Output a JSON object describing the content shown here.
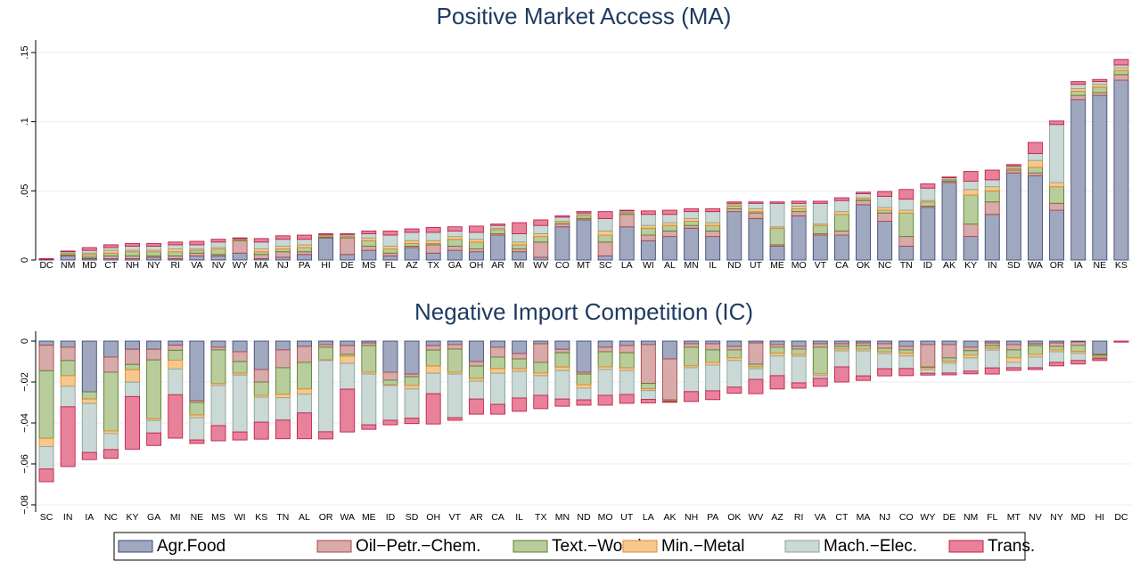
{
  "chart_data": [
    {
      "type": "stacked_bar",
      "title": "Positive Market Access (MA)",
      "categories": [
        "DC",
        "NM",
        "MD",
        "CT",
        "NH",
        "NY",
        "RI",
        "VA",
        "NV",
        "WY",
        "MA",
        "NJ",
        "PA",
        "HI",
        "DE",
        "MS",
        "FL",
        "AZ",
        "TX",
        "GA",
        "OH",
        "AR",
        "MI",
        "WV",
        "CO",
        "MT",
        "SC",
        "LA",
        "WI",
        "AL",
        "MN",
        "IL",
        "ND",
        "UT",
        "ME",
        "MO",
        "VT",
        "CA",
        "OK",
        "NC",
        "TN",
        "ID",
        "AK",
        "KY",
        "IN",
        "SD",
        "WA",
        "OR",
        "IA",
        "NE",
        "KS"
      ],
      "ylim": [
        0,
        0.159
      ],
      "yticks": [
        0,
        {
          "value": 0.05,
          "label": ".05"
        },
        {
          "value": 0.1,
          "label": ".1"
        },
        {
          "value": 0.15,
          "label": ".15"
        }
      ],
      "grid": true,
      "legend": "bottom",
      "series": [
        {
          "name": "Agr.Food",
          "color": "#a0a8c0",
          "edgecolor": "#3e4a78",
          "values": [
            0.0005,
            0.003,
            0.001,
            0.001,
            0.001,
            0.002,
            0.001,
            0.003,
            0.003,
            0.005,
            0.001,
            0.002,
            0.004,
            0.016,
            0.004,
            0.007,
            0.003,
            0.009,
            0.005,
            0.007,
            0.006,
            0.018,
            0.006,
            0.002,
            0.024,
            0.029,
            0.003,
            0.024,
            0.014,
            0.017,
            0.023,
            0.017,
            0.035,
            0.03,
            0.01,
            0.032,
            0.018,
            0.018,
            0.04,
            0.028,
            0.01,
            0.038,
            0.056,
            0.017,
            0.033,
            0.063,
            0.061,
            0.036,
            0.116,
            0.119,
            0.13
          ]
        },
        {
          "name": "Oil−Petr.−Chem.",
          "color": "#d8aaaa",
          "edgecolor": "#a84848",
          "values": [
            0,
            0.0005,
            0.001,
            0.002,
            0.002,
            0.001,
            0.002,
            0.002,
            0.001,
            0.009,
            0.003,
            0.004,
            0.002,
            0.0005,
            0.012,
            0.003,
            0.002,
            0.001,
            0.006,
            0.003,
            0.002,
            0.001,
            0.002,
            0.011,
            0.002,
            0.001,
            0.01,
            0.009,
            0.004,
            0.004,
            0.002,
            0.004,
            0.002,
            0.004,
            0.001,
            0.003,
            0.001,
            0.003,
            0.003,
            0.006,
            0.007,
            0.001,
            0.001,
            0.009,
            0.009,
            0.002,
            0.002,
            0.005,
            0.003,
            0.002,
            0.004
          ]
        },
        {
          "name": "Text.−Wood",
          "color": "#b8cc9c",
          "edgecolor": "#5a8030",
          "values": [
            0,
            0.001,
            0.002,
            0.002,
            0.003,
            0.003,
            0.003,
            0.002,
            0.004,
            0.0005,
            0.002,
            0.002,
            0.003,
            0.001,
            0.001,
            0.004,
            0.003,
            0.002,
            0.001,
            0.005,
            0.005,
            0.003,
            0.003,
            0.004,
            0.001,
            0.002,
            0.005,
            0.001,
            0.005,
            0.004,
            0.003,
            0.004,
            0.002,
            0.001,
            0.012,
            0.002,
            0.006,
            0.012,
            0.001,
            0.002,
            0.017,
            0.003,
            0.001,
            0.021,
            0.008,
            0.001,
            0.004,
            0.012,
            0.003,
            0.004,
            0.003
          ]
        },
        {
          "name": "Min.−Metal",
          "color": "#f6c88e",
          "edgecolor": "#e08a28",
          "values": [
            0,
            0.0005,
            0.001,
            0.002,
            0.001,
            0.001,
            0.002,
            0.001,
            0.001,
            0.0005,
            0.002,
            0.002,
            0.002,
            0.0005,
            0.0005,
            0.002,
            0.002,
            0.002,
            0.002,
            0.002,
            0.002,
            0.001,
            0.002,
            0.002,
            0.001,
            0.001,
            0.003,
            0.0005,
            0.002,
            0.002,
            0.002,
            0.002,
            0.001,
            0.002,
            0.001,
            0.002,
            0.001,
            0.002,
            0.001,
            0.002,
            0.002,
            0.001,
            0.0005,
            0.004,
            0.003,
            0.001,
            0.005,
            0.003,
            0.002,
            0.002,
            0.002
          ]
        },
        {
          "name": "Mach.−Elec.",
          "color": "#cad9d5",
          "edgecolor": "#8aa49c",
          "values": [
            0,
            0.001,
            0.002,
            0.002,
            0.003,
            0.003,
            0.003,
            0.003,
            0.004,
            0.0005,
            0.005,
            0.005,
            0.004,
            0.0005,
            0.001,
            0.003,
            0.008,
            0.006,
            0.006,
            0.004,
            0.005,
            0.002,
            0.006,
            0.006,
            0.003,
            0.001,
            0.009,
            0.001,
            0.008,
            0.006,
            0.005,
            0.008,
            0.001,
            0.004,
            0.017,
            0.002,
            0.015,
            0.008,
            0.003,
            0.008,
            0.008,
            0.009,
            0.001,
            0.006,
            0.005,
            0.001,
            0.005,
            0.042,
            0.003,
            0.002,
            0.002
          ]
        },
        {
          "name": "Trans.",
          "color": "#e8829a",
          "edgecolor": "#c0204a",
          "values": [
            0.0005,
            0.0005,
            0.002,
            0.002,
            0.002,
            0.002,
            0.002,
            0.0025,
            0.002,
            0.0005,
            0.0025,
            0.0025,
            0.003,
            0.0005,
            0.0005,
            0.002,
            0.003,
            0.0025,
            0.0035,
            0.003,
            0.0045,
            0.001,
            0.008,
            0.004,
            0.001,
            0.001,
            0.005,
            0.0005,
            0.0025,
            0.003,
            0.002,
            0.002,
            0.001,
            0.001,
            0.001,
            0.0015,
            0.0015,
            0.002,
            0.001,
            0.0035,
            0.007,
            0.003,
            0.0005,
            0.007,
            0.007,
            0.001,
            0.008,
            0.0025,
            0.002,
            0.0015,
            0.004
          ]
        }
      ]
    },
    {
      "type": "stacked_bar",
      "title": "Negative Import Competition (IC)",
      "categories": [
        "SC",
        "IN",
        "IA",
        "NC",
        "KY",
        "GA",
        "MI",
        "NE",
        "MS",
        "WI",
        "KS",
        "TN",
        "AL",
        "OR",
        "WA",
        "ME",
        "ID",
        "SD",
        "OH",
        "VT",
        "AR",
        "CA",
        "IL",
        "TX",
        "MN",
        "ND",
        "MO",
        "UT",
        "LA",
        "AK",
        "NH",
        "PA",
        "OK",
        "WV",
        "AZ",
        "RI",
        "VA",
        "CT",
        "MA",
        "NJ",
        "CO",
        "WY",
        "DE",
        "NM",
        "FL",
        "MT",
        "NV",
        "NY",
        "MD",
        "HI",
        "DC"
      ],
      "ylim": [
        -0.0835,
        0.0048
      ],
      "yticks": [
        {
          "value": -0.08,
          "label": "−.08"
        },
        {
          "value": -0.06,
          "label": "−.06"
        },
        {
          "value": -0.04,
          "label": "−.04"
        },
        {
          "value": -0.02,
          "label": "−.02"
        },
        0
      ],
      "grid": true,
      "series": [
        {
          "color": "#a0a8c0",
          "edgecolor": "#3e4a78",
          "values": [
            -0.002,
            -0.003,
            -0.0248,
            -0.0078,
            -0.004,
            -0.004,
            -0.002,
            -0.0291,
            -0.003,
            -0.0052,
            -0.0139,
            -0.0043,
            -0.0026,
            -0.0017,
            -0.0022,
            -0.0009,
            -0.0152,
            -0.0161,
            -0.0022,
            -0.0017,
            -0.01,
            -0.003,
            -0.0061,
            -0.0013,
            -0.004,
            -0.0152,
            -0.003,
            -0.0022,
            -0.0017,
            -0.0087,
            -0.0013,
            -0.0013,
            -0.0026,
            -0.0009,
            -0.0017,
            -0.0026,
            -0.0013,
            -0.0013,
            -0.0009,
            -0.0013,
            -0.0026,
            -0.0017,
            -0.0017,
            -0.003,
            -0.0009,
            -0.0017,
            -0.0013,
            -0.0009,
            -0.0004,
            -0.0065,
            0
          ]
        },
        {
          "color": "#d8aaaa",
          "edgecolor": "#a84848",
          "values": [
            -0.0125,
            -0.0065,
            0,
            -0.0074,
            -0.0074,
            -0.0052,
            -0.0025,
            -0.0009,
            -0.0013,
            -0.0048,
            -0.0061,
            -0.0087,
            -0.0078,
            -0.0013,
            -0.0043,
            -0.0013,
            -0.0039,
            -0.0013,
            -0.0022,
            -0.0022,
            -0.0022,
            -0.0048,
            -0.0026,
            -0.0091,
            -0.0017,
            -0.0009,
            -0.0022,
            -0.0035,
            -0.019,
            -0.02,
            -0.0017,
            -0.003,
            -0.0017,
            -0.0104,
            -0.0013,
            -0.0013,
            -0.0017,
            -0.0013,
            -0.0013,
            -0.0022,
            -0.0017,
            -0.011,
            -0.0065,
            -0.0017,
            -0.0013,
            -0.0026,
            -0.0009,
            -0.0017,
            -0.0017,
            -0.0004,
            0
          ]
        },
        {
          "color": "#b8cc9c",
          "edgecolor": "#5a8030",
          "values": [
            -0.033,
            -0.0074,
            -0.0035,
            -0.0287,
            -0.0026,
            -0.0287,
            -0.0048,
            -0.0061,
            -0.0165,
            -0.0057,
            -0.0065,
            -0.013,
            -0.013,
            -0.0061,
            -0.0009,
            -0.013,
            -0.0022,
            -0.0043,
            -0.0078,
            -0.0113,
            -0.0061,
            -0.0057,
            -0.0048,
            -0.0052,
            -0.007,
            -0.0052,
            -0.0074,
            -0.0074,
            -0.0026,
            -0.0004,
            -0.0091,
            -0.0061,
            -0.0039,
            -0.0013,
            -0.003,
            -0.0026,
            -0.013,
            -0.0013,
            -0.0017,
            -0.0017,
            -0.0017,
            -0.0004,
            -0.0017,
            -0.0022,
            -0.0013,
            -0.0039,
            -0.0043,
            -0.0017,
            -0.003,
            -0.0009,
            0
          ]
        },
        {
          "color": "#f6c88e",
          "edgecolor": "#e08a28",
          "values": [
            -0.004,
            -0.0052,
            -0.0022,
            -0.0013,
            -0.0061,
            -0.0009,
            -0.0043,
            -0.0013,
            -0.0009,
            -0.0009,
            -0.0009,
            -0.0017,
            -0.0026,
            -0.0004,
            -0.0035,
            -0.0009,
            -0.0004,
            -0.0017,
            -0.0035,
            -0.0009,
            -0.0013,
            -0.0022,
            -0.0013,
            -0.0013,
            -0.0017,
            -0.0017,
            -0.0013,
            -0.0013,
            -0.0009,
            -0.0002,
            -0.0009,
            -0.0013,
            -0.0013,
            -0.0009,
            -0.0013,
            -0.0009,
            -0.0009,
            -0.0009,
            -0.0009,
            -0.0009,
            -0.0013,
            -0.0009,
            -0.0009,
            -0.0013,
            -0.0009,
            -0.0022,
            -0.0013,
            -0.0009,
            -0.0009,
            -0.0004,
            0
          ]
        },
        {
          "color": "#cad9d5",
          "edgecolor": "#8aa49c",
          "values": [
            -0.011,
            -0.01,
            -0.0239,
            -0.0078,
            -0.007,
            -0.0061,
            -0.0126,
            -0.0109,
            -0.0196,
            -0.0278,
            -0.0122,
            -0.0109,
            -0.0091,
            -0.0348,
            -0.0126,
            -0.0248,
            -0.017,
            -0.0143,
            -0.01,
            -0.0213,
            -0.0087,
            -0.0152,
            -0.013,
            -0.0096,
            -0.0139,
            -0.0057,
            -0.0126,
            -0.0117,
            -0.0043,
            -0.0002,
            -0.0117,
            -0.0126,
            -0.013,
            -0.0052,
            -0.0096,
            -0.013,
            -0.0013,
            -0.0078,
            -0.0122,
            -0.0074,
            -0.0061,
            -0.0017,
            -0.0048,
            -0.0065,
            -0.0087,
            -0.0026,
            -0.0052,
            -0.0052,
            -0.0035,
            -0.0004,
            0
          ]
        },
        {
          "color": "#e8829a",
          "edgecolor": "#c0204a",
          "values": [
            -0.0062,
            -0.0292,
            -0.0035,
            -0.0043,
            -0.0257,
            -0.0061,
            -0.0212,
            -0.0017,
            -0.0074,
            -0.0039,
            -0.0083,
            -0.0091,
            -0.0126,
            -0.0035,
            -0.0209,
            -0.0022,
            -0.0022,
            -0.0026,
            -0.0148,
            -0.0013,
            -0.0074,
            -0.0048,
            -0.0065,
            -0.0065,
            -0.0035,
            -0.0026,
            -0.0048,
            -0.0043,
            -0.0017,
            -0.0004,
            -0.0048,
            -0.0043,
            -0.003,
            -0.007,
            -0.0065,
            -0.0026,
            -0.0039,
            -0.0074,
            -0.0022,
            -0.0035,
            -0.0035,
            -0.0009,
            -0.0009,
            -0.0013,
            -0.003,
            -0.0013,
            -0.0009,
            -0.0017,
            -0.0017,
            -0.0009,
            -0.0005
          ]
        }
      ]
    }
  ]
}
